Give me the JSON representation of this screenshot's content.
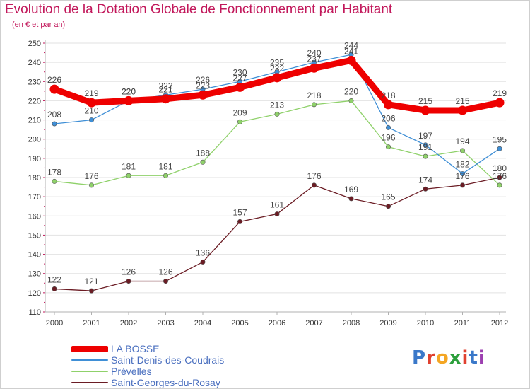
{
  "title": "Evolution de la Dotation Globale de Fonctionnement par Habitant",
  "subtitle": "(en € et par an)",
  "logo": {
    "text": "Proxiti",
    "letter_colors": [
      "#3a78c9",
      "#e0402f",
      "#f4a623",
      "#2c9f3b",
      "#e0402f",
      "#3a78c9",
      "#9c3fb0"
    ]
  },
  "colors": {
    "title": "#c2185b",
    "axis": "#b0b0b0",
    "grid": "#e2e2e2",
    "tick_marks": "#c2185b",
    "value_labels": "#444444"
  },
  "chart_data": {
    "type": "line",
    "x": [
      "2000",
      "2001",
      "2002",
      "2003",
      "2004",
      "2005",
      "2006",
      "2007",
      "2008",
      "2009",
      "2010",
      "2011",
      "2012"
    ],
    "ylim": [
      110,
      250
    ],
    "yticks": [
      110,
      120,
      130,
      140,
      150,
      160,
      170,
      180,
      190,
      200,
      210,
      220,
      230,
      240,
      250
    ],
    "grid": "horizontal",
    "legend_position": "bottom-left",
    "series": [
      {
        "name": "Saint-Georges-du-Rosay",
        "color": "#6b1c24",
        "width": 1.3,
        "marker": 3.2,
        "values": [
          122,
          121,
          126,
          126,
          136,
          157,
          161,
          176,
          169,
          165,
          174,
          176,
          180
        ]
      },
      {
        "name": "Prévelles",
        "color": "#8fd16a",
        "width": 1.3,
        "marker": 3.2,
        "values": [
          178,
          176,
          181,
          181,
          188,
          209,
          213,
          218,
          220,
          196,
          191,
          194,
          176
        ]
      },
      {
        "name": "Saint-Denis-des-Coudrais",
        "color": "#3f8fd6",
        "width": 1.3,
        "marker": 3.2,
        "values": [
          208,
          210,
          220,
          223,
          226,
          230,
          235,
          240,
          244,
          206,
          197,
          182,
          195
        ]
      },
      {
        "name": "LA BOSSE",
        "color": "#ee0000",
        "width": 9,
        "marker": 6.5,
        "values": [
          226,
          219,
          220,
          221,
          223,
          227,
          232,
          237,
          241,
          218,
          215,
          215,
          219
        ]
      }
    ]
  }
}
